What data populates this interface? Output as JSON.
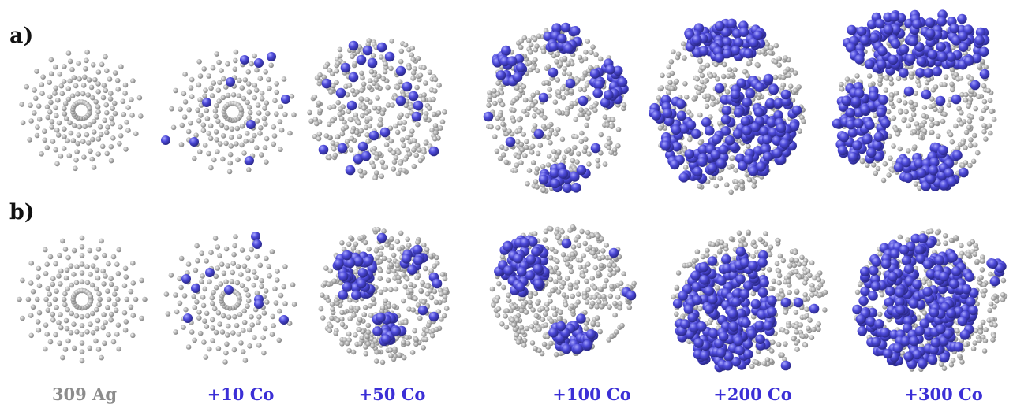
{
  "row_labels": {
    "a": "a)",
    "b": "b)"
  },
  "columns": [
    {
      "label": "309 Ag",
      "label_color": "#8c8c8c"
    },
    {
      "label": "+10 Co",
      "label_color": "#3b2fd6"
    },
    {
      "label": "+50 Co",
      "label_color": "#3b2fd6"
    },
    {
      "label": "+100 Co",
      "label_color": "#3b2fd6"
    },
    {
      "label": "+200 Co",
      "label_color": "#3b2fd6"
    },
    {
      "label": "+300 Co",
      "label_color": "#3b2fd6"
    }
  ],
  "colors": {
    "ag_atom": "#b4b4b4",
    "co_atom": "#4b48d8",
    "text_dark": "#111111"
  }
}
